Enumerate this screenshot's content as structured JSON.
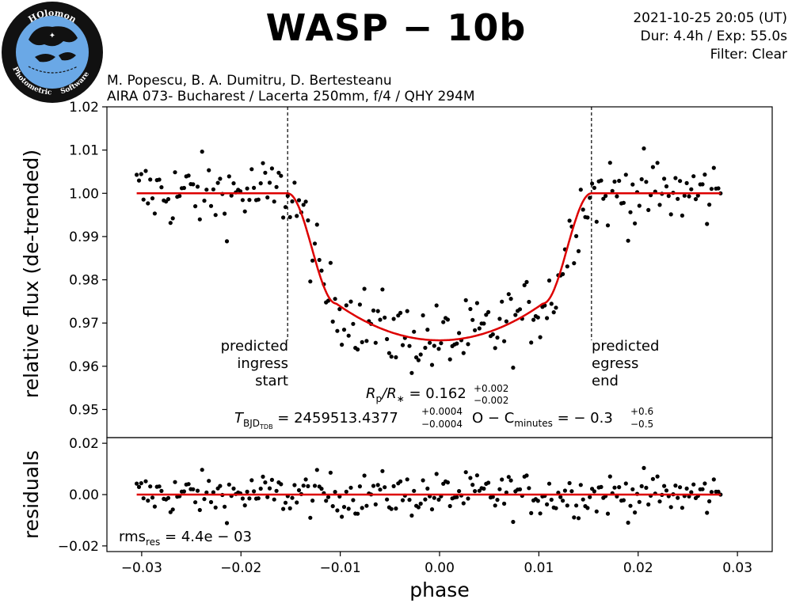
{
  "header": {
    "title": "WASP − 10b",
    "datetime": "2021-10-25 20:05 (UT)",
    "duration": "Dur: 4.4h / Exp: 55.0s",
    "filter": "Filter: Clear",
    "authors": "M. Popescu, B. A. Dumitru, D. Bertesteanu",
    "observatory": "AIRA 073- Bucharest / Lacerta 250mm, f/4 / QHY 294M"
  },
  "logo": {
    "top_text": "HOlomon",
    "left_text": "Photometric",
    "right_text": "Software"
  },
  "colors": {
    "model": "#dd0000",
    "points": "#000000",
    "logo_bg": "#6aa8e6"
  },
  "chart_data": [
    {
      "type": "scatter",
      "ylabel": "relative flux (de-trended)",
      "xlim": [
        -0.0335,
        0.0335
      ],
      "ylim": [
        0.9435,
        1.02
      ],
      "yticks": [
        0.95,
        0.96,
        0.97,
        0.98,
        0.99,
        1.0,
        1.01,
        1.02
      ],
      "ytick_labels": [
        "0.95",
        "0.96",
        "0.97",
        "0.98",
        "0.99",
        "1.00",
        "1.01",
        "1.02"
      ],
      "transit_model": {
        "t_ingress_start": -0.0153,
        "t_full_start": -0.0104,
        "t_full_end": 0.0104,
        "t_egress_end": 0.0153,
        "baseline": 1.0,
        "center_depth": 0.966,
        "edge_depth": 0.9745
      },
      "observations_x_range": [
        -0.0305,
        0.0283
      ],
      "observation_count": 260,
      "annotations": {
        "ingress": [
          "predicted",
          "ingress",
          "start"
        ],
        "egress": [
          "predicted",
          "egress",
          "end"
        ],
        "ingress_x": -0.0153,
        "egress_x": 0.0153,
        "rp_main": "R",
        "rp_sub1": "p",
        "rp_slash": "/R",
        "rp_sub2": "∗",
        "rp_eq": " = 0.162",
        "rp_up": "+0.002",
        "rp_down": "−0.002",
        "t_main": "T",
        "t_sub": "BJD",
        "t_subsub": "TDB",
        "t_eq": " = 2459513.4377",
        "t_up": "+0.0004",
        "t_down": "−0.0004",
        "oc_main": "O − C",
        "oc_sub": "minutes",
        "oc_eq": " = − 0.3",
        "oc_up": "+0.6",
        "oc_down": "−0.5"
      }
    },
    {
      "type": "scatter",
      "ylabel": "residuals",
      "xlabel": "phase",
      "xlim": [
        -0.0335,
        0.0335
      ],
      "ylim": [
        -0.0222,
        0.0222
      ],
      "xticks": [
        -0.03,
        -0.02,
        -0.01,
        0.0,
        0.01,
        0.02,
        0.03
      ],
      "xtick_labels": [
        "−0.03",
        "−0.02",
        "−0.01",
        "0.00",
        "0.01",
        "0.02",
        "0.03"
      ],
      "yticks": [
        -0.02,
        0.0,
        0.02
      ],
      "ytick_labels": [
        "−0.02",
        "0.00",
        "0.02"
      ],
      "rms_main": "rms",
      "rms_sub": "res",
      "rms_value": " = 4.4e − 03"
    }
  ]
}
